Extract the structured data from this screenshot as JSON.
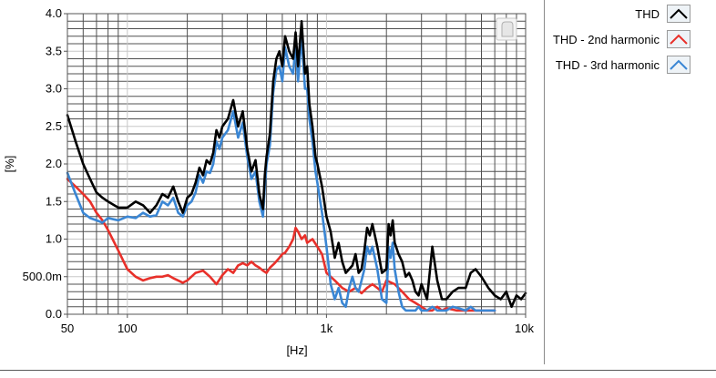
{
  "chart_data": {
    "type": "line",
    "title": "",
    "xlabel": "[Hz]",
    "ylabel": "[%]",
    "x_scale": "log",
    "xlim": [
      50,
      10000
    ],
    "ylim": [
      0,
      4
    ],
    "x_tick_values": [
      50,
      100,
      1000,
      10000
    ],
    "x_tick_labels": [
      "50",
      "100",
      "1k",
      "10k"
    ],
    "y_tick_values": [
      0,
      0.5,
      1,
      1.5,
      2,
      2.5,
      3,
      3.5,
      4
    ],
    "y_tick_labels": [
      "0.0",
      "500.0m",
      "1.0",
      "1.5",
      "2.0",
      "2.5",
      "3.0",
      "3.5",
      "4.0"
    ],
    "grid": true,
    "legend_position": "right",
    "series": [
      {
        "name": "THD",
        "color": "#000000",
        "x": [
          50,
          55,
          60,
          65,
          70,
          75,
          80,
          90,
          100,
          110,
          120,
          130,
          140,
          150,
          160,
          170,
          180,
          190,
          200,
          210,
          220,
          230,
          240,
          250,
          260,
          270,
          280,
          290,
          300,
          320,
          340,
          360,
          380,
          400,
          420,
          440,
          460,
          480,
          490,
          500,
          520,
          540,
          560,
          580,
          600,
          620,
          650,
          680,
          700,
          720,
          750,
          780,
          800,
          820,
          850,
          880,
          900,
          950,
          1000,
          1050,
          1100,
          1150,
          1200,
          1250,
          1300,
          1350,
          1400,
          1450,
          1500,
          1550,
          1600,
          1650,
          1700,
          1800,
          1900,
          2000,
          2050,
          2100,
          2150,
          2200,
          2300,
          2400,
          2500,
          2600,
          2700,
          2800,
          2900,
          3000,
          3200,
          3400,
          3600,
          3800,
          4000,
          4300,
          4600,
          5000,
          5300,
          5600,
          6000,
          6500,
          7000,
          7500,
          8000,
          8500,
          9000,
          9500,
          10000
        ],
        "values": [
          2.65,
          2.3,
          2.0,
          1.8,
          1.62,
          1.55,
          1.5,
          1.42,
          1.42,
          1.5,
          1.45,
          1.35,
          1.45,
          1.6,
          1.55,
          1.7,
          1.5,
          1.35,
          1.55,
          1.6,
          1.75,
          1.95,
          1.85,
          2.05,
          2.0,
          2.15,
          2.45,
          2.35,
          2.5,
          2.6,
          2.85,
          2.5,
          2.7,
          2.2,
          1.9,
          2.05,
          1.6,
          1.4,
          1.85,
          2.1,
          2.4,
          3.1,
          3.4,
          3.5,
          3.3,
          3.7,
          3.5,
          3.4,
          3.75,
          3.3,
          3.9,
          3.2,
          3.3,
          2.8,
          2.5,
          2.1,
          2.0,
          1.7,
          1.3,
          1.1,
          0.75,
          0.95,
          0.7,
          0.55,
          0.6,
          0.65,
          0.8,
          0.55,
          0.6,
          0.85,
          1.15,
          1.05,
          1.2,
          0.9,
          0.55,
          0.6,
          1.2,
          1.05,
          1.25,
          0.95,
          0.8,
          0.7,
          0.5,
          0.55,
          0.45,
          0.3,
          0.25,
          0.4,
          0.2,
          0.9,
          0.45,
          0.2,
          0.2,
          0.3,
          0.35,
          0.35,
          0.55,
          0.6,
          0.5,
          0.35,
          0.25,
          0.2,
          0.3,
          0.1,
          0.25,
          0.2,
          0.28
        ]
      },
      {
        "name": "THD - 2nd harmonic",
        "color": "#e8302a",
        "x": [
          50,
          55,
          60,
          65,
          70,
          75,
          80,
          90,
          100,
          110,
          120,
          130,
          140,
          150,
          160,
          170,
          180,
          190,
          200,
          220,
          240,
          260,
          280,
          300,
          320,
          340,
          360,
          380,
          400,
          420,
          440,
          460,
          480,
          500,
          520,
          550,
          580,
          600,
          620,
          650,
          680,
          700,
          720,
          750,
          780,
          800,
          850,
          900,
          950,
          1000,
          1100,
          1200,
          1300,
          1400,
          1500,
          1600,
          1700,
          1800,
          1900,
          2000,
          2200,
          2400,
          2600,
          2800,
          3000,
          3200,
          3400,
          3600,
          3800,
          4000,
          4500,
          5000,
          5500,
          6000,
          6500,
          7000
        ],
        "values": [
          1.8,
          1.7,
          1.6,
          1.5,
          1.35,
          1.25,
          1.12,
          0.85,
          0.6,
          0.5,
          0.45,
          0.48,
          0.5,
          0.5,
          0.52,
          0.48,
          0.45,
          0.42,
          0.45,
          0.55,
          0.58,
          0.5,
          0.4,
          0.52,
          0.6,
          0.55,
          0.65,
          0.68,
          0.65,
          0.7,
          0.65,
          0.62,
          0.58,
          0.55,
          0.62,
          0.68,
          0.75,
          0.8,
          0.82,
          0.9,
          1.0,
          1.15,
          1.1,
          1.0,
          1.05,
          0.95,
          1.0,
          0.9,
          0.8,
          0.55,
          0.45,
          0.35,
          0.3,
          0.35,
          0.28,
          0.35,
          0.4,
          0.35,
          0.3,
          0.45,
          0.4,
          0.3,
          0.2,
          0.15,
          0.1,
          0.05,
          0.05,
          0.1,
          0.05,
          0.08,
          0.05,
          0.05,
          0.05,
          0.05,
          0.05,
          0.05
        ]
      },
      {
        "name": "THD - 3rd harmonic",
        "color": "#3a86d4",
        "x": [
          50,
          55,
          60,
          65,
          70,
          75,
          80,
          90,
          100,
          110,
          120,
          130,
          140,
          150,
          160,
          170,
          180,
          190,
          200,
          210,
          220,
          230,
          240,
          250,
          260,
          270,
          280,
          290,
          300,
          320,
          340,
          360,
          380,
          400,
          420,
          440,
          460,
          480,
          490,
          500,
          520,
          540,
          560,
          580,
          600,
          620,
          650,
          680,
          700,
          720,
          750,
          780,
          800,
          820,
          850,
          880,
          900,
          950,
          1000,
          1050,
          1100,
          1150,
          1200,
          1250,
          1300,
          1350,
          1400,
          1450,
          1500,
          1550,
          1600,
          1650,
          1700,
          1800,
          1900,
          2000,
          2050,
          2100,
          2150,
          2200,
          2300,
          2400,
          2500,
          2600,
          2700,
          2800,
          2900,
          3000,
          3200,
          3400,
          3600,
          3800,
          4000,
          4300,
          4600,
          5000,
          5300,
          5600,
          6000,
          6500,
          7000
        ],
        "values": [
          1.88,
          1.6,
          1.35,
          1.28,
          1.25,
          1.22,
          1.28,
          1.25,
          1.3,
          1.28,
          1.35,
          1.3,
          1.32,
          1.5,
          1.45,
          1.55,
          1.35,
          1.3,
          1.45,
          1.5,
          1.62,
          1.85,
          1.75,
          1.9,
          1.88,
          2.0,
          2.3,
          2.2,
          2.35,
          2.45,
          2.7,
          2.35,
          2.55,
          2.1,
          1.8,
          1.9,
          1.5,
          1.3,
          1.7,
          2.0,
          2.25,
          2.95,
          3.25,
          3.3,
          3.1,
          3.55,
          3.3,
          3.2,
          3.6,
          3.1,
          3.7,
          3.0,
          3.0,
          2.6,
          2.3,
          1.9,
          1.75,
          1.35,
          0.9,
          0.4,
          0.2,
          0.35,
          0.15,
          0.1,
          0.35,
          0.5,
          0.35,
          0.3,
          0.45,
          0.6,
          0.9,
          0.8,
          0.9,
          0.6,
          0.2,
          0.15,
          0.9,
          0.75,
          0.95,
          0.6,
          0.3,
          0.1,
          0.05,
          0.05,
          0.05,
          0.05,
          0.1,
          0.05,
          0.05,
          0.1,
          0.05,
          0.05,
          0.05,
          0.1,
          0.08,
          0.05,
          0.1,
          0.05,
          0.05,
          0.05,
          0.05
        ]
      }
    ]
  }
}
